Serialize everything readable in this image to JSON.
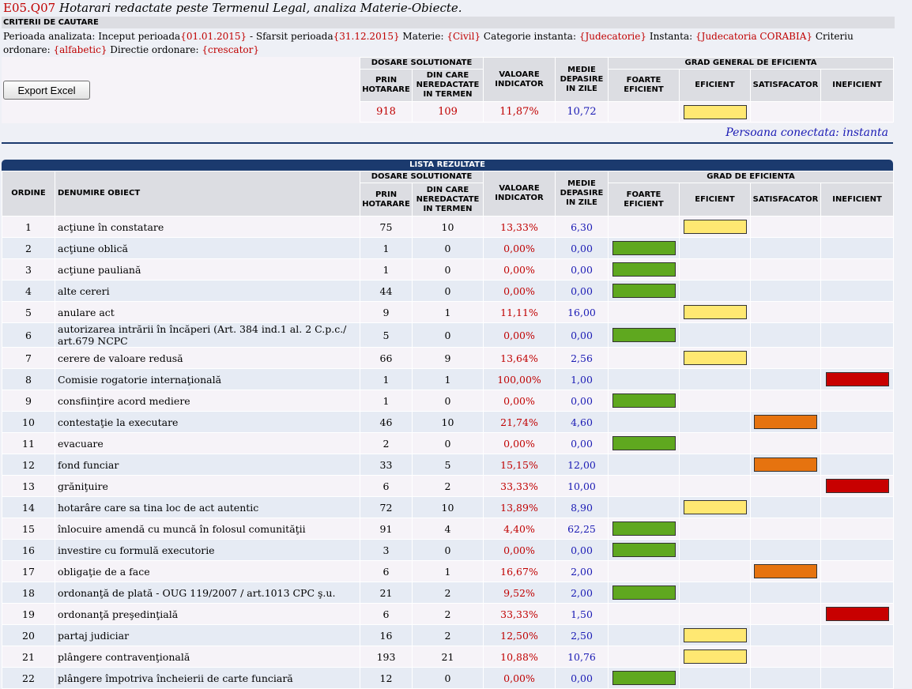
{
  "header": {
    "code": "E05.Q07",
    "title": "Hotarari redactate peste Termenul Legal, analiza Materie-Obiecte."
  },
  "criteria": {
    "label": "CRITERII DE CAUTARE",
    "perioada_label": "Perioada analizata: Inceput perioada",
    "start": "{01.01.2015}",
    "sfarsit_label": " - Sfarsit perioada",
    "end": "{31.12.2015}",
    "materie_label": " Materie: ",
    "materie": "{Civil}",
    "categorie_label": " Categorie instanta: ",
    "categorie": "{Judecatorie}",
    "instanta_label": " Instanta: ",
    "instanta": "{Judecatoria CORABIA}",
    "ordonare_label": " Criteriu ordonare: ",
    "ordonare": "{alfabetic}",
    "directie_label": " Directie ordonare: ",
    "directie": "{crescator}"
  },
  "toolbar": {
    "export_label": "Export Excel"
  },
  "columns": {
    "ordine": "ORDINE",
    "denumire": "DENUMIRE OBIECT",
    "dosare": "DOSARE SOLUTIONATE",
    "prin": "PRIN HOTARARE",
    "din_care": "DIN CARE NEREDACTATE IN TERMEN",
    "valoare": "VALOARE INDICATOR",
    "medie": "MEDIE DEPASIRE IN ZILE",
    "grad_general": "GRAD GENERAL DE EFICIENTA",
    "grad": "GRAD DE EFICIENTA",
    "foarte": "FOARTE EFICIENT",
    "eficient": "EFICIENT",
    "satisfacator": "SATISFACATOR",
    "ineficient": "INEFICIENT"
  },
  "summary": {
    "prin": "918",
    "din_care": "109",
    "valoare": "11,87%",
    "medie": "10,72",
    "grade": "ef"
  },
  "session": {
    "person": "Persoana conectata: instanta"
  },
  "list_title": "LISTA REZULTATE",
  "colors": {
    "foarte": "#5fa81f",
    "eficient": "#ffe872",
    "satisfacator": "#e6730f",
    "ineficient": "#c80000",
    "header_bar": "#1b3a6e"
  },
  "rows": [
    {
      "n": "1",
      "name": "acţiune în constatare",
      "prin": "75",
      "din": "10",
      "val": "13,33%",
      "med": "6,30",
      "grade": "ef"
    },
    {
      "n": "2",
      "name": "acţiune oblică",
      "prin": "1",
      "din": "0",
      "val": "0,00%",
      "med": "0,00",
      "grade": "fe"
    },
    {
      "n": "3",
      "name": "acţiune pauliană",
      "prin": "1",
      "din": "0",
      "val": "0,00%",
      "med": "0,00",
      "grade": "fe"
    },
    {
      "n": "4",
      "name": "alte cereri",
      "prin": "44",
      "din": "0",
      "val": "0,00%",
      "med": "0,00",
      "grade": "fe"
    },
    {
      "n": "5",
      "name": "anulare act",
      "prin": "9",
      "din": "1",
      "val": "11,11%",
      "med": "16,00",
      "grade": "ef"
    },
    {
      "n": "6",
      "name": "autorizarea intrării în încăperi (Art. 384 ind.1 al. 2 C.p.c./ art.679 NCPC",
      "prin": "5",
      "din": "0",
      "val": "0,00%",
      "med": "0,00",
      "grade": "fe"
    },
    {
      "n": "7",
      "name": "cerere de valoare redusă",
      "prin": "66",
      "din": "9",
      "val": "13,64%",
      "med": "2,56",
      "grade": "ef"
    },
    {
      "n": "8",
      "name": "Comisie rogatorie internaţională",
      "prin": "1",
      "din": "1",
      "val": "100,00%",
      "med": "1,00",
      "grade": "in"
    },
    {
      "n": "9",
      "name": "consfiinţire acord mediere",
      "prin": "1",
      "din": "0",
      "val": "0,00%",
      "med": "0,00",
      "grade": "fe"
    },
    {
      "n": "10",
      "name": "contestaţie la executare",
      "prin": "46",
      "din": "10",
      "val": "21,74%",
      "med": "4,60",
      "grade": "sa"
    },
    {
      "n": "11",
      "name": "evacuare",
      "prin": "2",
      "din": "0",
      "val": "0,00%",
      "med": "0,00",
      "grade": "fe"
    },
    {
      "n": "12",
      "name": "fond funciar",
      "prin": "33",
      "din": "5",
      "val": "15,15%",
      "med": "12,00",
      "grade": "sa"
    },
    {
      "n": "13",
      "name": "grăniţuire",
      "prin": "6",
      "din": "2",
      "val": "33,33%",
      "med": "10,00",
      "grade": "in"
    },
    {
      "n": "14",
      "name": "hotarâre care sa tina loc de act autentic",
      "prin": "72",
      "din": "10",
      "val": "13,89%",
      "med": "8,90",
      "grade": "ef"
    },
    {
      "n": "15",
      "name": "înlocuire amendă cu muncă în folosul comunităţii",
      "prin": "91",
      "din": "4",
      "val": "4,40%",
      "med": "62,25",
      "grade": "fe"
    },
    {
      "n": "16",
      "name": "investire cu formulă executorie",
      "prin": "3",
      "din": "0",
      "val": "0,00%",
      "med": "0,00",
      "grade": "fe"
    },
    {
      "n": "17",
      "name": "obligaţie de a face",
      "prin": "6",
      "din": "1",
      "val": "16,67%",
      "med": "2,00",
      "grade": "sa"
    },
    {
      "n": "18",
      "name": "ordonanţă de plată - OUG 119/2007 / art.1013 CPC ş.u.",
      "prin": "21",
      "din": "2",
      "val": "9,52%",
      "med": "2,00",
      "grade": "fe"
    },
    {
      "n": "19",
      "name": "ordonanţă preşedinţială",
      "prin": "6",
      "din": "2",
      "val": "33,33%",
      "med": "1,50",
      "grade": "in"
    },
    {
      "n": "20",
      "name": "partaj judiciar",
      "prin": "16",
      "din": "2",
      "val": "12,50%",
      "med": "2,50",
      "grade": "ef"
    },
    {
      "n": "21",
      "name": "plângere contravenţională",
      "prin": "193",
      "din": "21",
      "val": "10,88%",
      "med": "10,76",
      "grade": "ef"
    },
    {
      "n": "22",
      "name": "plângere împotriva încheierii de carte funciară",
      "prin": "12",
      "din": "0",
      "val": "0,00%",
      "med": "0,00",
      "grade": "fe"
    }
  ]
}
